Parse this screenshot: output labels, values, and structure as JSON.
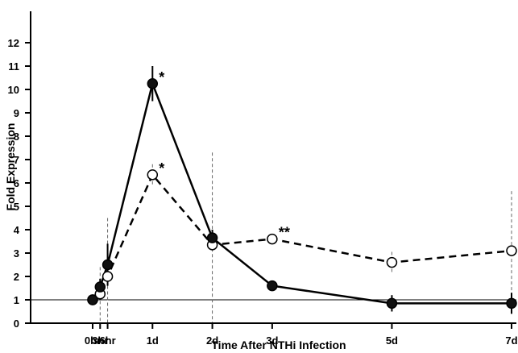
{
  "chart_data": {
    "type": "line",
    "xlabel": "Time After NTHi Infection",
    "ylabel": "Fold Expression",
    "ylim": [
      0,
      12
    ],
    "yticks": [
      0,
      1,
      2,
      3,
      4,
      5,
      6,
      7,
      8,
      9,
      10,
      11,
      12
    ],
    "categories": [
      "0hr",
      "3hr",
      "6hr",
      "1d",
      "2d",
      "3d",
      "5d",
      "7d"
    ],
    "x_hours": [
      0,
      3,
      6,
      24,
      48,
      72,
      120,
      168
    ],
    "reference_line": 1,
    "series": [
      {
        "style": "solid line, filled circles",
        "values": [
          1.0,
          1.55,
          2.5,
          10.25,
          3.65,
          1.6,
          0.85,
          0.85
        ],
        "error": [
          0.0,
          0.35,
          0.9,
          0.75,
          0.35,
          0.2,
          0.35,
          0.45
        ]
      },
      {
        "style": "dashed line, open circles",
        "values": [
          1.0,
          1.25,
          2.0,
          6.35,
          3.35,
          3.6,
          2.6,
          3.1
        ],
        "error": [
          0.0,
          1.15,
          2.5,
          0.45,
          3.95,
          0.2,
          0.45,
          2.55
        ]
      }
    ],
    "annotations": [
      {
        "text": "*",
        "category": "1d",
        "y": 10.25
      },
      {
        "text": "*",
        "category": "1d",
        "y": 6.35
      },
      {
        "text": "**",
        "category": "3d",
        "y": 3.6
      }
    ],
    "grid": false,
    "legend": "none"
  }
}
